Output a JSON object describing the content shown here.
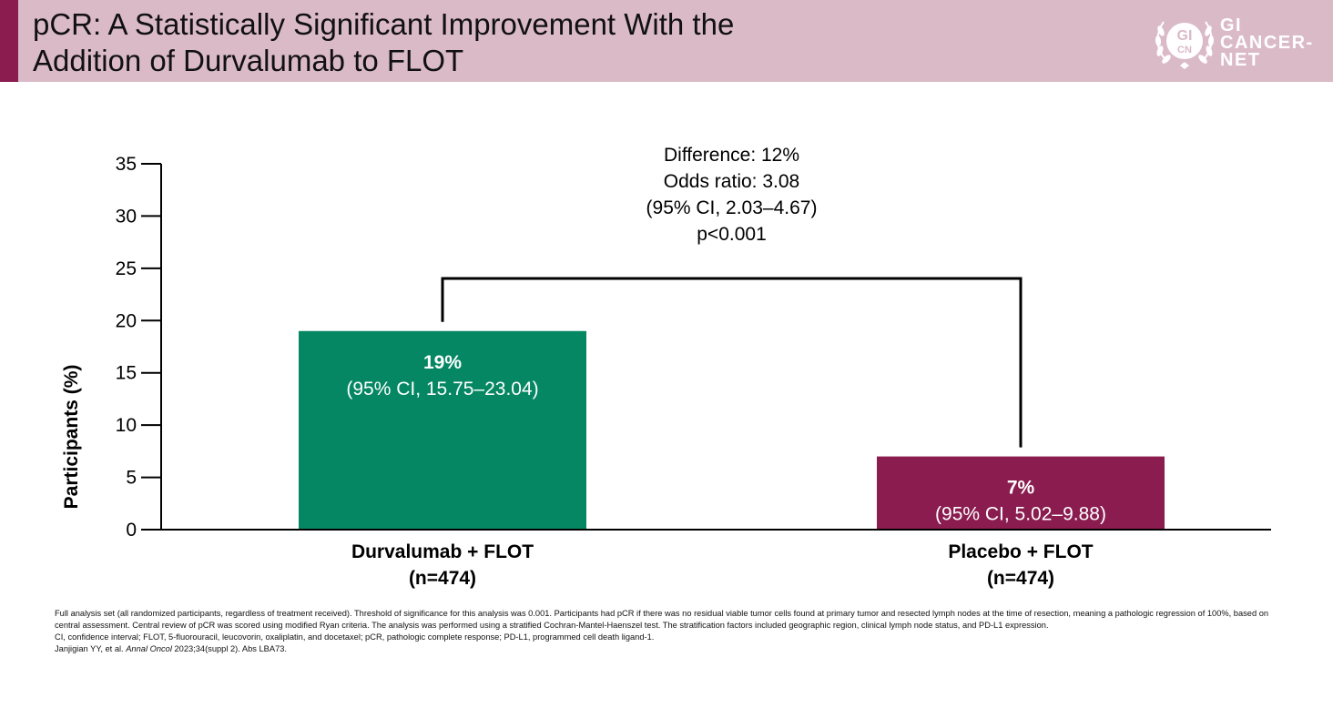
{
  "slide": {
    "title_line1": "pCR: A Statistically Significant Improvement With the",
    "title_line2": "Addition of Durvalumab to FLOT",
    "logo": {
      "line1": "GI",
      "line2": "CANCER-",
      "line3": "NET",
      "seal": "GI CN"
    }
  },
  "chart_data": {
    "type": "bar",
    "title": "",
    "xlabel": "",
    "ylabel": "Participants (%)",
    "ylim": [
      0,
      35
    ],
    "yticks": [
      0,
      5,
      10,
      15,
      20,
      25,
      30,
      35
    ],
    "grid": false,
    "categories": [
      "Durvalumab + FLOT",
      "Placebo + FLOT"
    ],
    "category_n": [
      "(n=474)",
      "(n=474)"
    ],
    "values": [
      19,
      7
    ],
    "bar_labels": [
      "19%",
      "7%"
    ],
    "bar_ci": [
      "(95% CI, 15.75–23.04)",
      "(95% CI, 5.02–9.88)"
    ],
    "colors": [
      "#058764",
      "#8a1c4f"
    ],
    "annotation": [
      "Difference: 12%",
      "Odds ratio: 3.08",
      "(95% CI, 2.03–4.67)",
      "p<0.001"
    ]
  },
  "footnotes": {
    "line1": "Full analysis set (all randomized participants, regardless of treatment received). Threshold of significance for this analysis was 0.001. Participants had pCR if there was no residual viable tumor cells found at primary tumor and resected lymph nodes at the time of resection, meaning a pathologic regression of 100%, based on central assessment. Central review of pCR was scored using modified Ryan criteria. The analysis was performed using a stratified Cochran-Mantel-Haenszel test. The stratification factors included geographic region, clinical lymph node status, and PD-L1 expression.",
    "line2": "CI, confidence interval; FLOT, 5-fluorouracil, leucovorin, oxaliplatin, and docetaxel; pCR, pathologic complete response; PD-L1, programmed cell death ligand-1.",
    "ref_authors": "Janjigian YY, et al. ",
    "ref_journal": "Annal Oncol",
    "ref_rest": " 2023;34(suppl 2). Abs LBA73."
  }
}
